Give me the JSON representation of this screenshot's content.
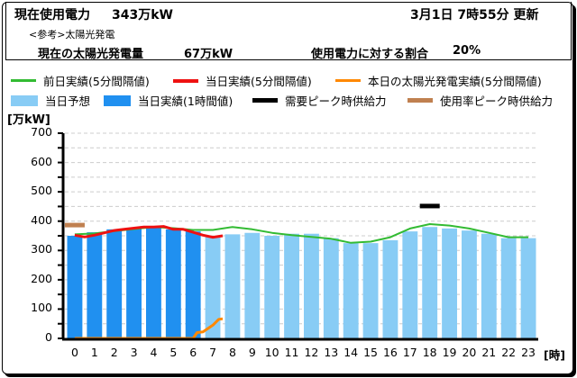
{
  "header": {
    "current_usage_label": "現在使用電力",
    "current_usage_value": "343万kW",
    "update_time": "3月1日 7時55分 更新",
    "reference_label": "<参考>太陽光発電",
    "solar_label": "現在の太陽光発電量",
    "solar_value": "67万kW",
    "ratio_label": "使用電力に対する割合",
    "ratio_value": "20%"
  },
  "legend": {
    "items": [
      {
        "label": "前日実績(5分間隔値)",
        "color": "#33bb33",
        "kind": "line"
      },
      {
        "label": "当日実績(5分間隔値)",
        "color": "#ee1111",
        "kind": "line"
      },
      {
        "label": "本日の太陽光発電実績(5分間隔値)",
        "color": "#ff8800",
        "kind": "line"
      },
      {
        "label": "当日予想",
        "color": "#88ccf5",
        "kind": "box"
      },
      {
        "label": "当日実績(1時間値)",
        "color": "#2090f0",
        "kind": "box"
      },
      {
        "label": "需要ピーク時供給力",
        "color": "#000000",
        "kind": "thick"
      },
      {
        "label": "使用率ピーク時供給力",
        "color": "#c08050",
        "kind": "thick"
      }
    ]
  },
  "chart_data": {
    "type": "bar",
    "title": "",
    "ylabel": "[万kW]",
    "xlabel": "[時]",
    "ylim": [
      0,
      700
    ],
    "yticks": [
      0,
      100,
      200,
      300,
      400,
      500,
      600,
      700
    ],
    "grid": true,
    "categories": [
      "0",
      "1",
      "2",
      "3",
      "4",
      "5",
      "6",
      "7",
      "8",
      "9",
      "10",
      "11",
      "12",
      "13",
      "14",
      "15",
      "16",
      "17",
      "18",
      "19",
      "20",
      "21",
      "22",
      "23"
    ],
    "series": [
      {
        "name": "当日実績(1時間値)",
        "type": "bar",
        "color": "#2090f0",
        "values": [
          350,
          362,
          372,
          375,
          378,
          372,
          365,
          null,
          null,
          null,
          null,
          null,
          null,
          null,
          null,
          null,
          null,
          null,
          null,
          null,
          null,
          null,
          null,
          null
        ]
      },
      {
        "name": "当日予想",
        "type": "bar",
        "color": "#88ccf5",
        "values": [
          null,
          null,
          null,
          null,
          null,
          null,
          null,
          347,
          355,
          360,
          350,
          357,
          357,
          342,
          325,
          325,
          335,
          365,
          380,
          375,
          368,
          357,
          342,
          342
        ]
      },
      {
        "name": "前日実績(5分間隔値)",
        "type": "line",
        "color": "#33bb33",
        "values": [
          355,
          358,
          366,
          373,
          380,
          376,
          370,
          370,
          380,
          372,
          360,
          352,
          346,
          340,
          326,
          330,
          345,
          375,
          390,
          385,
          375,
          360,
          345,
          345
        ]
      },
      {
        "name": "当日実績(5分間隔値)",
        "type": "line",
        "color": "#ee1111",
        "x": [
          0,
          0.5,
          1,
          1.5,
          2,
          2.5,
          3,
          3.5,
          4,
          4.5,
          5,
          5.5,
          6,
          6.5,
          7,
          7.5
        ],
        "values": [
          352,
          346,
          352,
          360,
          368,
          372,
          376,
          380,
          380,
          382,
          372,
          372,
          362,
          352,
          345,
          350
        ]
      },
      {
        "name": "本日の太陽光発電実績(5分間隔値)",
        "type": "line",
        "color": "#ff8800",
        "x": [
          0,
          6,
          6.2,
          6.5,
          7,
          7.3,
          7.5
        ],
        "values": [
          0,
          0,
          20,
          22,
          45,
          65,
          67
        ]
      },
      {
        "name": "需要ピーク時供給力",
        "type": "marker",
        "color": "#000000",
        "x": 18,
        "value": 450
      },
      {
        "name": "使用率ピーク時供給力",
        "type": "marker",
        "color": "#c08050",
        "x": 0,
        "value": 385
      }
    ]
  }
}
